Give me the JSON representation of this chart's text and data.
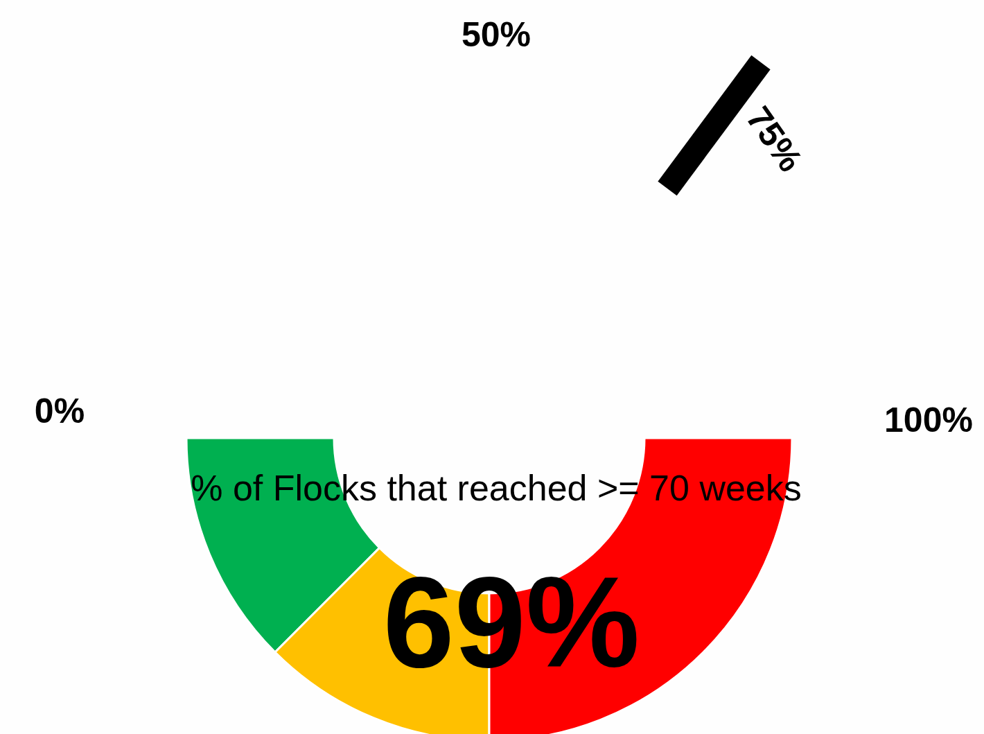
{
  "chart_data": {
    "type": "donut",
    "title": "% of Flocks that reached >= 70 weeks",
    "categories": [
      null,
      null,
      null
    ],
    "values": [
      25,
      25,
      50
    ],
    "colors": [
      "#00b050",
      "#ffc000",
      "#ff0000"
    ],
    "annotations": [
      "69%",
      "0%",
      "50%",
      "75%",
      "100%"
    ]
  }
}
